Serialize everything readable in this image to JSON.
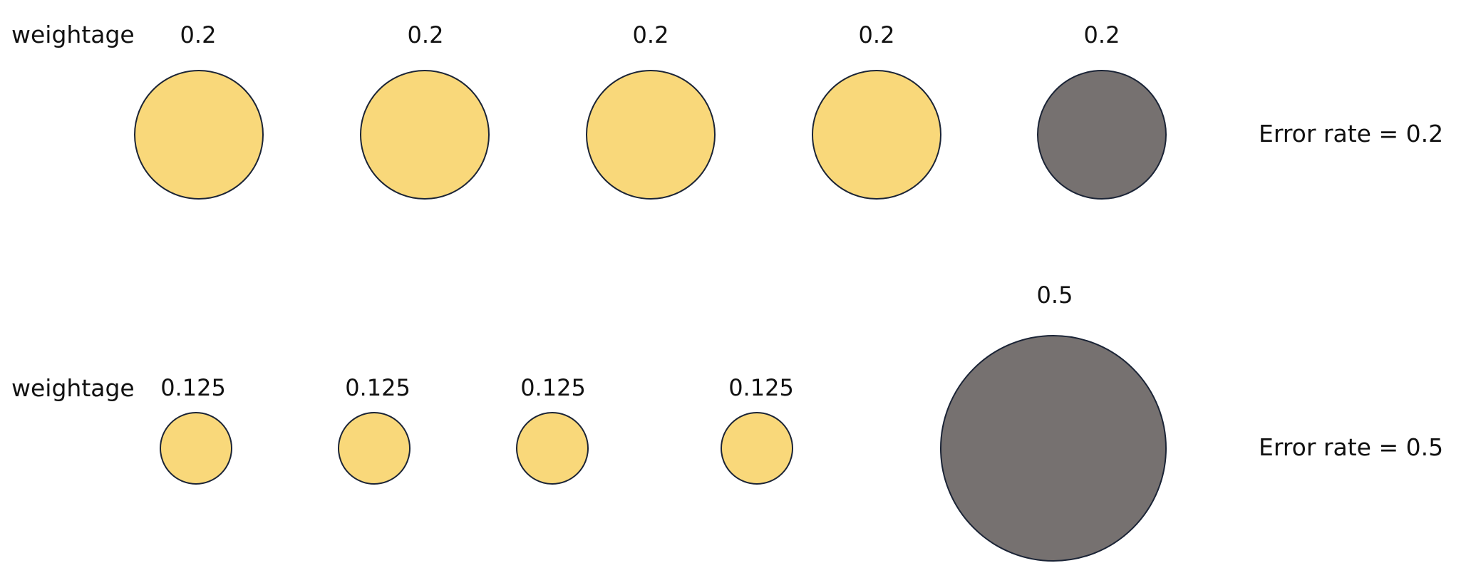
{
  "rows": [
    {
      "weightage_label": "weightage",
      "error_label": "Error rate = 0.2",
      "items": [
        {
          "weight": "0.2",
          "state": "correct"
        },
        {
          "weight": "0.2",
          "state": "correct"
        },
        {
          "weight": "0.2",
          "state": "correct"
        },
        {
          "weight": "0.2",
          "state": "correct"
        },
        {
          "weight": "0.2",
          "state": "misclassified"
        }
      ]
    },
    {
      "weightage_label": "weightage",
      "error_label": "Error rate = 0.5",
      "items": [
        {
          "weight": "0.125",
          "state": "correct"
        },
        {
          "weight": "0.125",
          "state": "correct"
        },
        {
          "weight": "0.125",
          "state": "correct"
        },
        {
          "weight": "0.125",
          "state": "correct"
        },
        {
          "weight": "0.5",
          "state": "misclassified"
        }
      ]
    }
  ],
  "colors": {
    "correct_fill": "#f9d87a",
    "misclassified_fill": "#767170",
    "stroke": "#1b2436",
    "text": "#111111"
  }
}
